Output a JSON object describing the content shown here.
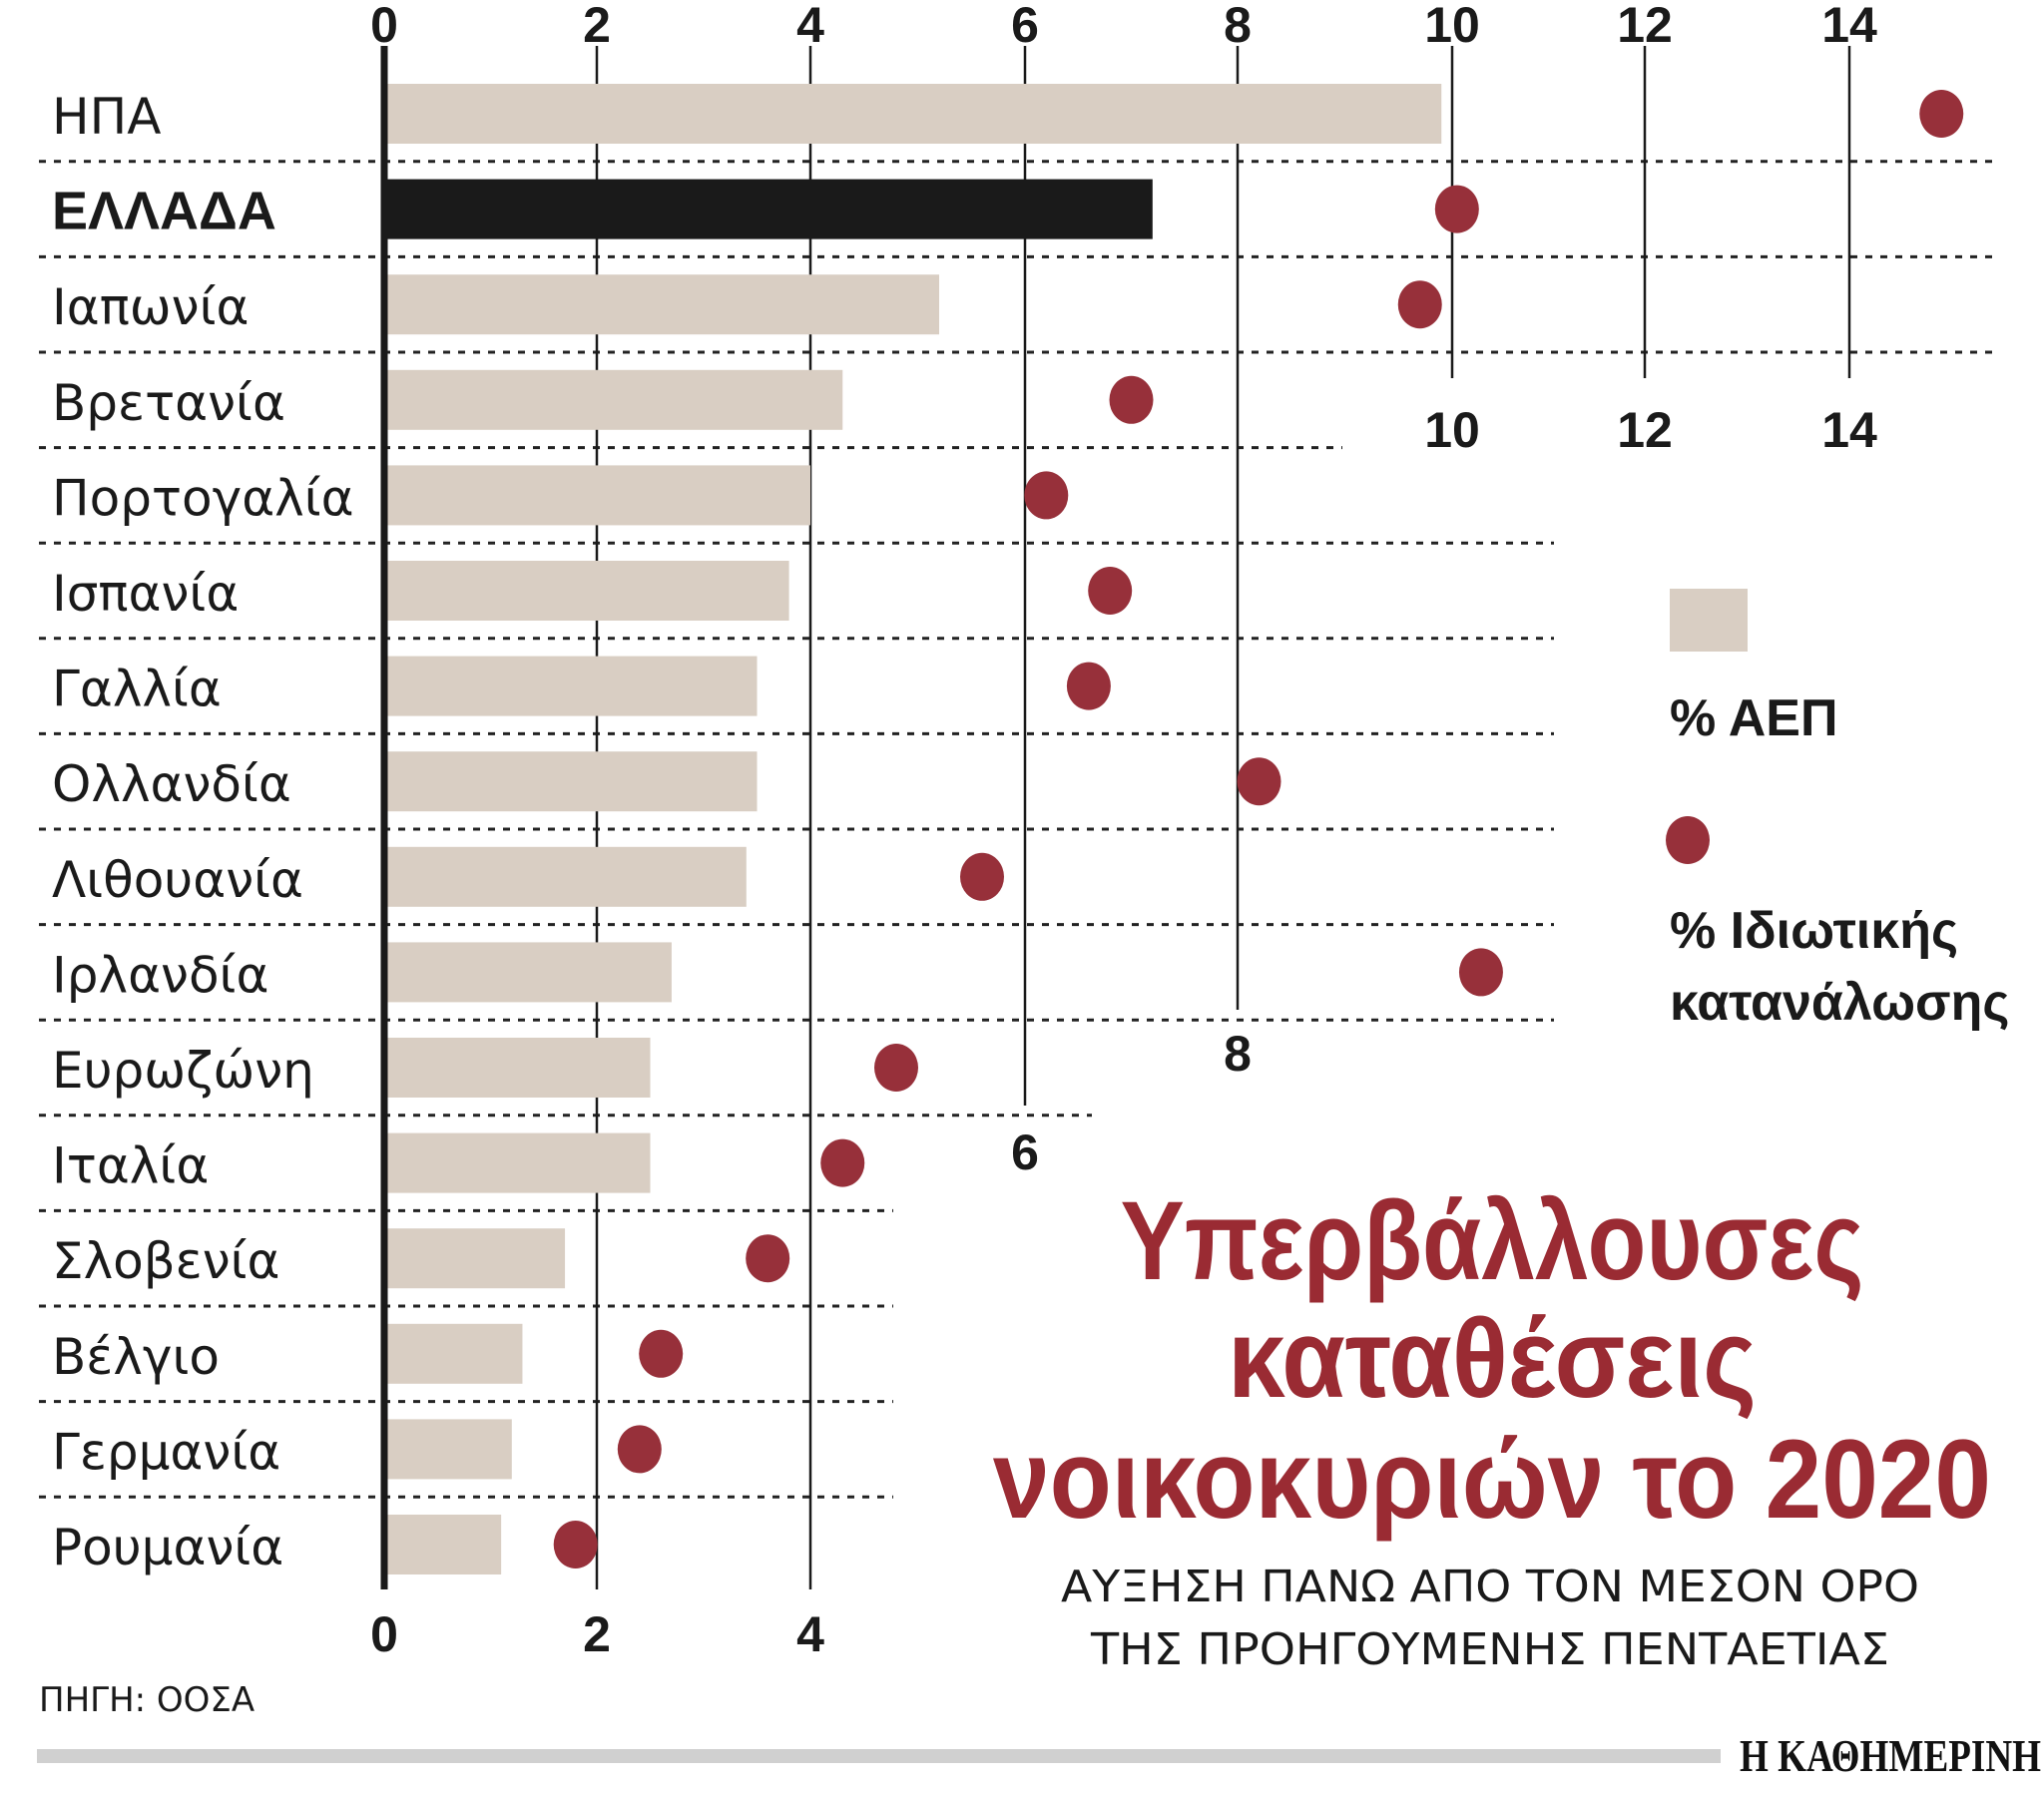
{
  "chart_data": {
    "type": "bar",
    "title": "Υπερβάλλουσες καταθέσεις νοικοκυριών το 2020",
    "title_lines": [
      "Υπερβάλλουσες",
      "καταθέσεις",
      "νοικοκυριών το 2020"
    ],
    "subtitle_lines": [
      "ΑΥΞΗΣΗ ΠΑΝΩ ΑΠΟ ΤΟΝ ΜΕΣΟΝ ΟΡΟ",
      "ΤΗΣ ΠΡΟΗΓΟΥΜΕΝΗΣ ΠΕΝΤΑΕΤΙΑΣ"
    ],
    "orientation": "horizontal",
    "xlim": [
      0,
      15
    ],
    "x_ticks": [
      "0",
      "2",
      "4",
      "6",
      "8",
      "10",
      "12",
      "14"
    ],
    "categories": [
      "ΗΠΑ",
      "ΕΛΛΑΔΑ",
      "Ιαπωνία",
      "Βρετανία",
      "Πορτογαλία",
      "Ισπανία",
      "Γαλλία",
      "Ολλανδία",
      "Λιθουανία",
      "Ιρλανδία",
      "Ευρωζώνη",
      "Ιταλία",
      "Σλοβενία",
      "Βέλγιο",
      "Γερμανία",
      "Ρουμανία"
    ],
    "highlight_category": "ΕΛΛΑΔΑ",
    "series": [
      {
        "name": "% ΑΕΠ",
        "mark": "bar",
        "color": "#d9cec3",
        "values": [
          9.9,
          7.2,
          5.2,
          4.3,
          4.0,
          3.8,
          3.5,
          3.5,
          3.4,
          2.7,
          2.5,
          2.5,
          1.7,
          1.3,
          1.2,
          1.1
        ]
      },
      {
        "name": "% Ιδιωτικής κατανάλωσης",
        "name_lines": [
          "% Ιδιωτικής",
          "κατανάλωσης"
        ],
        "mark": "dot",
        "color": "#97303a",
        "values": [
          14.9,
          10.05,
          9.7,
          7.0,
          6.2,
          6.8,
          6.6,
          8.2,
          5.6,
          10.3,
          4.8,
          4.3,
          3.6,
          2.6,
          2.4,
          1.8
        ]
      }
    ],
    "highlight_bar_color": "#1a1a1a",
    "grid": true,
    "legend_position": "right",
    "source": "ΠΗΓΗ: ΟΟΣΑ",
    "logo": "Η ΚΑΘΗΜΕΡΙΝΗ"
  }
}
